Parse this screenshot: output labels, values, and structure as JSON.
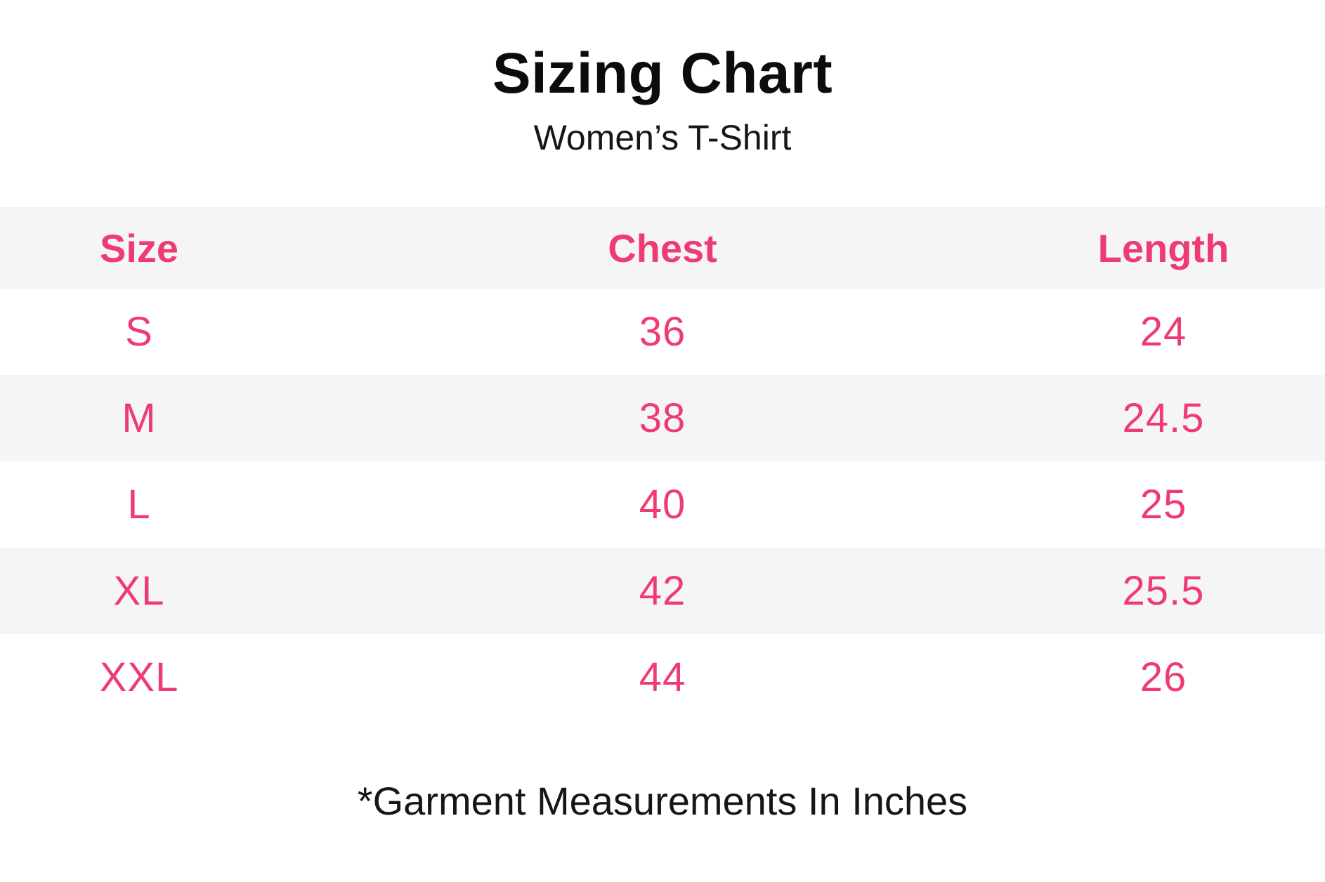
{
  "page": {
    "title": "Sizing Chart",
    "subtitle": "Women’s T-Shirt",
    "footnote": "*Garment Measurements In Inches"
  },
  "chart_data": {
    "type": "table",
    "title": "Sizing Chart",
    "subtitle": "Women’s T-Shirt",
    "columns": [
      "Size",
      "Chest",
      "Length"
    ],
    "rows": [
      [
        "S",
        "36",
        "24"
      ],
      [
        "M",
        "38",
        "24.5"
      ],
      [
        "L",
        "40",
        "25"
      ],
      [
        "XL",
        "42",
        "25.5"
      ],
      [
        "XXL",
        "44",
        "26"
      ]
    ],
    "units": "inches",
    "footnote": "*Garment Measurements In Inches",
    "layout_hints": {
      "header_background": "#F5F5F7",
      "row_stripe_background": "#F5F5F7",
      "stripe_pattern": "header gray, then white/gray alternating",
      "alignment": "center"
    }
  },
  "colors": {
    "accent_pink": "#EE3C72",
    "row_stripe_gray": "#F5F5F7",
    "text_black": "#121212",
    "background": "#FFFFFF"
  }
}
